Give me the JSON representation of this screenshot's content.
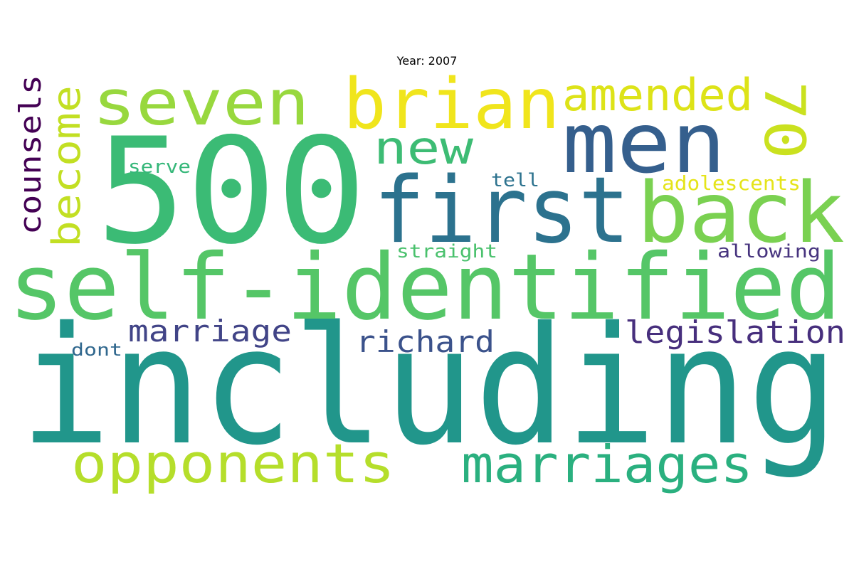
{
  "title": "Year: 2007",
  "words": [
    {
      "text": "including",
      "color": "#21968b"
    },
    {
      "text": "500",
      "color": "#3bbb75"
    },
    {
      "text": "self-identified",
      "color": "#55c667"
    },
    {
      "text": "first",
      "color": "#2c728e"
    },
    {
      "text": "back",
      "color": "#7ad151"
    },
    {
      "text": "men",
      "color": "#355f8d"
    },
    {
      "text": "brian",
      "color": "#f0e51c"
    },
    {
      "text": "seven",
      "color": "#98d83e"
    },
    {
      "text": "opponents",
      "color": "#b5de2b"
    },
    {
      "text": "marriages",
      "color": "#2ab07f"
    },
    {
      "text": "amended",
      "color": "#dde318"
    },
    {
      "text": "70",
      "color": "#cae11f"
    },
    {
      "text": "new",
      "color": "#3dbc74"
    },
    {
      "text": "become",
      "color": "#c2df23"
    },
    {
      "text": "counsels",
      "color": "#440154"
    },
    {
      "text": "legislation",
      "color": "#472f7d"
    },
    {
      "text": "marriage",
      "color": "#414487"
    },
    {
      "text": "richard",
      "color": "#3b528b"
    },
    {
      "text": "adolescents",
      "color": "#e5e419"
    },
    {
      "text": "serve",
      "color": "#35b779"
    },
    {
      "text": "tell",
      "color": "#2c728e"
    },
    {
      "text": "straight",
      "color": "#4ac16d"
    },
    {
      "text": "allowing",
      "color": "#46337e"
    },
    {
      "text": "dont",
      "color": "#31688e"
    }
  ]
}
